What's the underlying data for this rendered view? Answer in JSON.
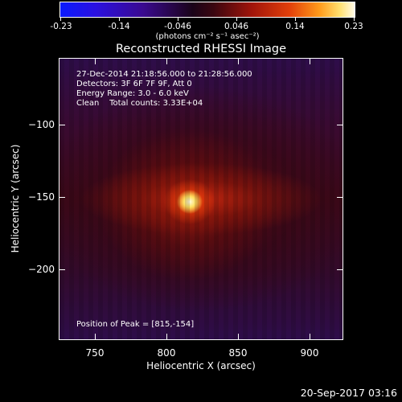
{
  "colorbar": {
    "tick_labels": [
      "-0.23",
      "-0.14",
      "-0.046",
      "0.046",
      "0.14",
      "0.23"
    ],
    "units": "(photons cm⁻² s⁻¹ asec⁻²)"
  },
  "title": "Reconstructed RHESSI Image",
  "info": {
    "time": "27-Dec-2014 21:18:56.000 to 21:28:56.000",
    "detectors": "Detectors: 3F 6F 7F 9F, Att 0",
    "energy": "Energy Range: 3.0 - 6.0 keV",
    "clean": "Clean    Total counts: 3.33E+04"
  },
  "peak_position": "Position of Peak = [815,-154]",
  "x_axis": {
    "title": "Heliocentric X (arcsec)",
    "ticks": [
      "750",
      "800",
      "850",
      "900"
    ]
  },
  "y_axis": {
    "title": "Heliocentric Y (arcsec)",
    "ticks": [
      "−100",
      "−150",
      "−200"
    ]
  },
  "timestamp": "20-Sep-2017 03:16"
}
